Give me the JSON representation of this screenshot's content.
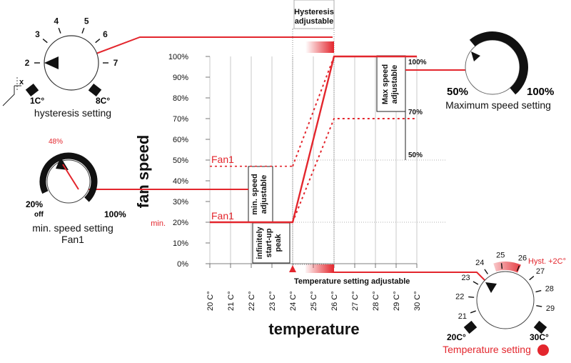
{
  "colors": {
    "red": "#e3262d",
    "black": "#111111",
    "grid": "#888888"
  },
  "axes": {
    "y_title": "fan speed",
    "x_title": "temperature",
    "y_ticks": [
      "100%",
      "90%",
      "80%",
      "70%",
      "60%",
      "50%",
      "40%",
      "30%",
      "20%",
      "10%",
      "0%"
    ],
    "x_ticks": [
      "20 C°",
      "21 C°",
      "22 C°",
      "23 C°",
      "24 C°",
      "25 C°",
      "26 C°",
      "27 C°",
      "28 C°",
      "29 C°",
      "30 C°"
    ],
    "min_label": "min."
  },
  "chart_labels": {
    "fan1_upper": "Fan1",
    "fan1_lower": "Fan1",
    "hysteresis": [
      "Hysteresis",
      "adjustable"
    ],
    "max_speed": [
      "Max speed",
      "adjustable"
    ],
    "min_speed": [
      "min. speed",
      "adjustable"
    ],
    "startup": [
      "infinitely",
      "start-up",
      "peak"
    ],
    "temp_adjustable": "Temperature setting adjustable",
    "right_pcts": [
      "100%",
      "70%",
      "50%"
    ]
  },
  "dial_hysteresis": {
    "numbers": [
      "2",
      "3",
      "4",
      "5",
      "6",
      "7"
    ],
    "min": "1C°",
    "max": "8C°",
    "x_label": "x",
    "caption": "hysteresis setting"
  },
  "dial_min_speed": {
    "top_value": "48%",
    "left": "20%",
    "off": "off",
    "right": "100%",
    "caption": [
      "min. speed setting",
      "Fan1"
    ]
  },
  "dial_max_speed": {
    "left": "50%",
    "right": "100%",
    "caption": "Maximum speed setting"
  },
  "dial_temperature": {
    "numbers": [
      "21",
      "22",
      "23",
      "24",
      "25",
      "26",
      "27",
      "28",
      "29"
    ],
    "min": "20C°",
    "max": "30C°",
    "hyst": "Hyst. +2C°",
    "caption": "Temperature setting"
  },
  "chart_data": {
    "type": "line",
    "xlabel": "temperature",
    "ylabel": "fan speed",
    "x_unit": "°C",
    "xlim": [
      20,
      30
    ],
    "ylim": [
      0,
      100
    ],
    "series": [
      {
        "name": "Fan1",
        "style": "solid",
        "x": [
          20,
          24,
          26,
          30
        ],
        "y": [
          20,
          20,
          100,
          100
        ]
      },
      {
        "style": "dotted",
        "x": [
          24,
          26
        ],
        "y": [
          47,
          100
        ]
      },
      {
        "style": "dotted",
        "x": [
          24,
          26,
          30
        ],
        "y": [
          20,
          70,
          70
        ]
      }
    ]
  }
}
